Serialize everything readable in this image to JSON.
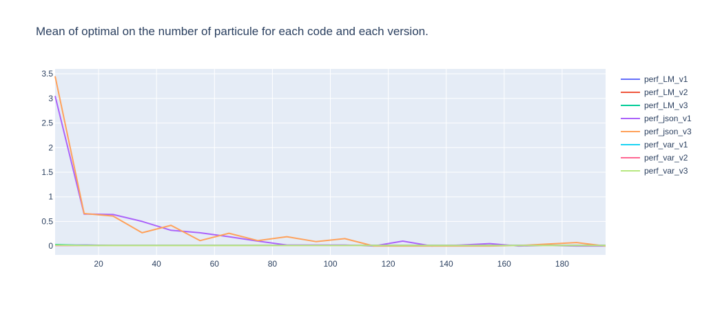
{
  "chart_data": {
    "type": "line",
    "title": "Mean of optimal on the number of particule for each code and each version.",
    "xlabel": "",
    "ylabel": "",
    "xlim": [
      5,
      195
    ],
    "ylim": [
      -0.18,
      3.6
    ],
    "xticks": [
      20,
      40,
      60,
      80,
      100,
      120,
      140,
      160,
      180
    ],
    "yticks": [
      0,
      0.5,
      1,
      1.5,
      2,
      2.5,
      3,
      3.5
    ],
    "ytick_labels": [
      "0",
      "0.5",
      "1",
      "1.5",
      "2",
      "2.5",
      "3",
      "3.5"
    ],
    "grid": true,
    "legend_position": "right",
    "x": [
      5,
      15,
      25,
      35,
      45,
      55,
      65,
      75,
      85,
      95,
      105,
      115,
      125,
      135,
      145,
      155,
      165,
      175,
      185,
      195
    ],
    "series": [
      {
        "name": "perf_LM_v1",
        "color": "#636efa",
        "values": [
          0.02,
          0.02,
          0.01,
          0.01,
          0.01,
          0.01,
          0.01,
          0.01,
          0.01,
          0.01,
          0.01,
          0.01,
          0.01,
          0.01,
          0.01,
          0.01,
          0.01,
          0.01,
          0.01,
          0.01
        ]
      },
      {
        "name": "perf_LM_v2",
        "color": "#ef553b",
        "values": [
          0.02,
          0.01,
          0.01,
          0.01,
          0.01,
          0.01,
          0.01,
          0.01,
          0.01,
          0.01,
          0.01,
          0.01,
          0.01,
          0.01,
          0.01,
          0.01,
          0.01,
          0.01,
          0.01,
          0.01
        ]
      },
      {
        "name": "perf_LM_v3",
        "color": "#00cc96",
        "values": [
          0.03,
          0.01,
          0.01,
          0.01,
          0.01,
          0.01,
          0.01,
          0.01,
          0.01,
          0.01,
          0.01,
          0.01,
          0.01,
          0.01,
          0.01,
          0.01,
          0.01,
          0.01,
          0.01,
          0.01
        ]
      },
      {
        "name": "perf_json_v1",
        "color": "#ab63fa",
        "values": [
          3.05,
          0.65,
          0.64,
          0.5,
          0.32,
          0.27,
          0.19,
          0.1,
          0.02,
          0.02,
          0.02,
          0.0,
          0.1,
          0.0,
          0.02,
          0.05,
          0.0,
          0.01,
          0.0,
          0.0
        ]
      },
      {
        "name": "perf_json_v3",
        "color": "#ffa15a",
        "values": [
          3.45,
          0.66,
          0.61,
          0.27,
          0.42,
          0.11,
          0.26,
          0.11,
          0.19,
          0.09,
          0.15,
          0.0,
          0.0,
          0.0,
          0.0,
          0.0,
          0.01,
          0.04,
          0.07,
          0.0
        ]
      },
      {
        "name": "perf_var_v1",
        "color": "#19d3f3",
        "values": [
          0.01,
          0.01,
          0.01,
          0.01,
          0.01,
          0.01,
          0.01,
          0.01,
          0.01,
          0.01,
          0.01,
          0.01,
          0.01,
          0.01,
          0.01,
          0.01,
          0.01,
          0.01,
          0.01,
          0.01
        ]
      },
      {
        "name": "perf_var_v2",
        "color": "#ff6692",
        "values": [
          0.01,
          0.01,
          0.01,
          0.01,
          0.01,
          0.01,
          0.01,
          0.01,
          0.01,
          0.01,
          0.01,
          0.01,
          0.01,
          0.01,
          0.01,
          0.01,
          0.01,
          0.01,
          0.01,
          0.01
        ]
      },
      {
        "name": "perf_var_v3",
        "color": "#b6e880",
        "values": [
          0.02,
          0.01,
          0.01,
          0.01,
          0.01,
          0.01,
          0.01,
          0.01,
          0.01,
          0.01,
          0.01,
          0.01,
          0.01,
          0.01,
          0.01,
          0.01,
          0.01,
          0.01,
          0.01,
          0.01
        ]
      }
    ]
  },
  "colors": {
    "plot_background": "#e5ecf6",
    "grid": "#ffffff",
    "text": "#2a3f5f"
  }
}
